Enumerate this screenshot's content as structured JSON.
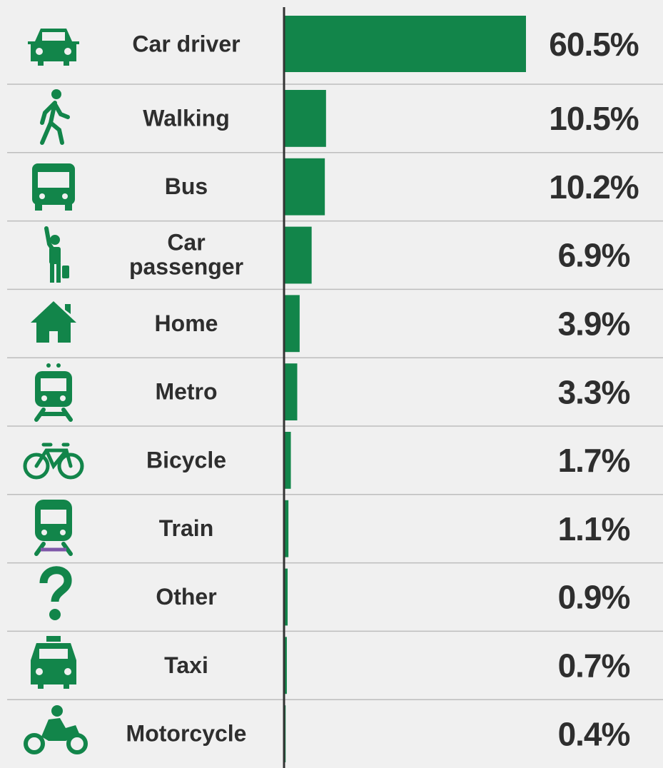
{
  "chart_data": {
    "type": "bar",
    "orientation": "horizontal",
    "categories": [
      "Car driver",
      "Walking",
      "Bus",
      "Car passenger",
      "Home",
      "Metro",
      "Bicycle",
      "Train",
      "Other",
      "Taxi",
      "Motorcycle"
    ],
    "values": [
      60.5,
      10.5,
      10.2,
      6.9,
      3.9,
      3.3,
      1.7,
      1.1,
      0.9,
      0.7,
      0.4
    ],
    "value_labels": [
      "60.5%",
      "10.5%",
      "10.2%",
      "6.9%",
      "3.9%",
      "3.3%",
      "1.7%",
      "1.1%",
      "0.9%",
      "0.7%",
      "0.4%"
    ],
    "color": "#12854a"
  }
}
